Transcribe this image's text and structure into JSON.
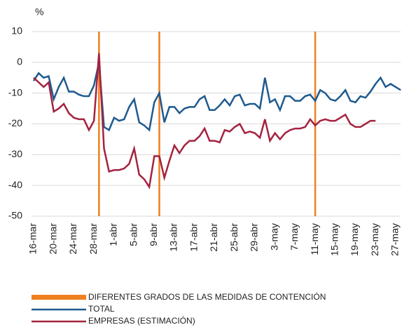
{
  "chart_data": {
    "type": "line",
    "y_unit": "%",
    "categories": [
      "16-mar",
      null,
      null,
      null,
      "20-mar",
      null,
      null,
      null,
      "24-mar",
      null,
      null,
      null,
      "28-mar",
      null,
      null,
      null,
      "1-abr",
      null,
      null,
      null,
      "5-abr",
      null,
      null,
      null,
      "9-abr",
      null,
      null,
      null,
      "13-abr",
      null,
      null,
      null,
      "17-abr",
      null,
      null,
      null,
      "21-abr",
      null,
      null,
      null,
      "25-abr",
      null,
      null,
      null,
      "29-abr",
      null,
      null,
      null,
      "3-may",
      null,
      null,
      null,
      "7-may",
      null,
      null,
      null,
      "11-may",
      null,
      null,
      null,
      "15-may",
      null,
      null,
      null,
      "19-may",
      null,
      null,
      null,
      "23-may",
      null,
      null,
      null,
      "27-may",
      null
    ],
    "ylim": [
      -50,
      10
    ],
    "yticks": [
      -50,
      -40,
      -30,
      -20,
      -10,
      0,
      10
    ],
    "grid": true,
    "markers": {
      "name": "DIFERENTES GRADOS DE LAS MEDIDAS DE CONTENCIÓN",
      "color": "#f07f1e",
      "at": [
        13,
        25,
        56
      ]
    },
    "series": [
      {
        "name": "TOTAL",
        "color": "#1f5a8e",
        "values": [
          -6,
          -3.5,
          -5,
          -4.5,
          -12,
          -8,
          -5,
          -9.5,
          -9.5,
          -10.5,
          -11,
          -11,
          -7.5,
          0,
          -21,
          -22,
          -18,
          -19,
          -18.5,
          -14.5,
          -12,
          -19.5,
          -20.5,
          -22,
          -13,
          -10,
          -19.5,
          -14.5,
          -14.5,
          -16.5,
          -15,
          -14.5,
          -14.5,
          -12,
          -11,
          -15.5,
          -15.5,
          -14,
          -12,
          -14,
          -11,
          -10.5,
          -14,
          -13.5,
          -13.5,
          -15,
          -5,
          -13,
          -12,
          -15.5,
          -11,
          -11,
          -12.5,
          -12.5,
          -11,
          -10.5,
          -12.5,
          -9,
          -10,
          -12,
          -12.5,
          -11,
          -9,
          -12.5,
          -13,
          -11,
          -11.5,
          -9.5,
          -7,
          -5,
          -8,
          -7,
          -8,
          -9
        ]
      },
      {
        "name": "EMPRESAS (ESTIMACIÓN)",
        "color": "#a3233f",
        "values": [
          -5,
          -6.5,
          -8,
          -6.5,
          -16,
          -15,
          -13.5,
          -16.5,
          -18,
          -18.5,
          -18.5,
          -22,
          -19,
          3,
          -28,
          -35.5,
          -35,
          -35,
          -34.5,
          -33,
          -28,
          -36.5,
          -38,
          -40.5,
          -30.5,
          -30.5,
          -37.5,
          -32,
          -27,
          -29.5,
          -27,
          -25.5,
          -25.5,
          -24,
          -21.5,
          -25.5,
          -25.5,
          -26,
          -22,
          -22.5,
          -21,
          -20,
          -23,
          -22.5,
          -23,
          -24.5,
          -18.5,
          -25.5,
          -23,
          -25,
          -23,
          -22,
          -21.5,
          -21.5,
          -21,
          -18.5,
          -20.5,
          -19,
          -18.5,
          -19,
          -19,
          -18,
          -17,
          -20,
          -21,
          -21,
          -20,
          -19,
          -19,
          null,
          null,
          null,
          null,
          null
        ]
      }
    ]
  }
}
